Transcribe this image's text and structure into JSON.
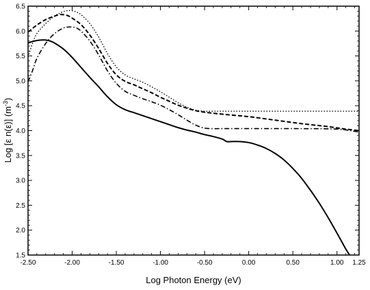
{
  "chart_data": {
    "type": "line",
    "title": "",
    "xlabel": "Log Photon Energy (eV)",
    "ylabel_main": "Log [ε n(ε)] (m",
    "ylabel_sup": "-3",
    "ylabel_close": ")",
    "xlim": [
      -2.5,
      1.25
    ],
    "ylim": [
      1.5,
      6.5
    ],
    "grid": false,
    "x_ticks": [
      -2.5,
      -2.0,
      -1.5,
      -1.0,
      -0.5,
      0.0,
      0.5,
      1.0,
      1.25
    ],
    "x_tick_labels": [
      "-2.50",
      "-2.00",
      "-1.50",
      "-1.00",
      "-0.50",
      "0.00",
      "0.50",
      "1.00",
      "1.25"
    ],
    "y_ticks": [
      1.5,
      2.0,
      2.5,
      3.0,
      3.5,
      4.0,
      4.5,
      5.0,
      5.5,
      6.0,
      6.5
    ],
    "y_tick_labels": [
      "1.5",
      "2.0",
      "2.5",
      "3.0",
      "3.5",
      "4.0",
      "4.5",
      "5.0",
      "5.5",
      "6.0",
      "6.5"
    ],
    "series": [
      {
        "style": "solid",
        "x": [
          -2.5,
          -2.45,
          -2.4,
          -2.35,
          -2.3,
          -2.25,
          -2.2,
          -2.1,
          -2.0,
          -1.9,
          -1.8,
          -1.7,
          -1.6,
          -1.5,
          -1.4,
          -1.3,
          -1.2,
          -1.1,
          -1.0,
          -0.9,
          -0.8,
          -0.7,
          -0.6,
          -0.5,
          -0.4,
          -0.3,
          -0.25,
          -0.2,
          -0.1,
          0.0,
          0.1,
          0.2,
          0.3,
          0.4,
          0.5,
          0.6,
          0.7,
          0.8,
          0.9,
          1.0,
          1.05,
          1.1,
          1.15,
          1.18
        ],
        "y": [
          5.76,
          5.79,
          5.81,
          5.82,
          5.82,
          5.8,
          5.76,
          5.64,
          5.47,
          5.27,
          5.07,
          4.88,
          4.68,
          4.52,
          4.42,
          4.36,
          4.3,
          4.24,
          4.18,
          4.12,
          4.06,
          4.01,
          3.97,
          3.92,
          3.88,
          3.83,
          3.78,
          3.78,
          3.78,
          3.76,
          3.71,
          3.64,
          3.54,
          3.41,
          3.24,
          3.04,
          2.8,
          2.54,
          2.25,
          1.94,
          1.78,
          1.62,
          1.48,
          1.4
        ]
      },
      {
        "style": "dashed",
        "x": [
          -2.5,
          -2.4,
          -2.3,
          -2.2,
          -2.15,
          -2.1,
          -2.05,
          -2.0,
          -1.9,
          -1.8,
          -1.7,
          -1.6,
          -1.5,
          -1.4,
          -1.3,
          -1.2,
          -1.1,
          -1.0,
          -0.9,
          -0.8,
          -0.7,
          -0.6,
          -0.5,
          -0.3,
          0.0,
          0.3,
          0.6,
          0.9,
          1.1,
          1.25
        ],
        "y": [
          5.98,
          6.12,
          6.23,
          6.3,
          6.33,
          6.33,
          6.31,
          6.26,
          6.13,
          5.92,
          5.65,
          5.35,
          5.12,
          4.99,
          4.92,
          4.84,
          4.76,
          4.67,
          4.59,
          4.51,
          4.45,
          4.4,
          4.37,
          4.33,
          4.28,
          4.21,
          4.14,
          4.08,
          4.03,
          4.0
        ]
      },
      {
        "style": "dotted",
        "x": [
          -2.5,
          -2.45,
          -2.4,
          -2.3,
          -2.2,
          -2.1,
          -2.05,
          -2.0,
          -1.95,
          -1.9,
          -1.8,
          -1.7,
          -1.6,
          -1.5,
          -1.4,
          -1.3,
          -1.2,
          -1.1,
          -1.0,
          -0.9,
          -0.8,
          -0.7,
          -0.6,
          -0.5,
          -0.4,
          -0.3,
          0.0,
          0.5,
          1.0,
          1.25
        ],
        "y": [
          5.48,
          5.75,
          5.95,
          6.15,
          6.3,
          6.39,
          6.41,
          6.41,
          6.38,
          6.33,
          6.15,
          5.88,
          5.55,
          5.28,
          5.12,
          5.04,
          4.97,
          4.88,
          4.78,
          4.67,
          4.56,
          4.47,
          4.41,
          4.39,
          4.39,
          4.39,
          4.39,
          4.39,
          4.39,
          4.39
        ]
      },
      {
        "style": "dash-dot",
        "x": [
          -2.5,
          -2.45,
          -2.4,
          -2.3,
          -2.2,
          -2.1,
          -2.05,
          -2.0,
          -1.95,
          -1.9,
          -1.8,
          -1.7,
          -1.6,
          -1.5,
          -1.4,
          -1.3,
          -1.2,
          -1.1,
          -1.0,
          -0.9,
          -0.8,
          -0.7,
          -0.6,
          -0.5,
          -0.4,
          -0.3,
          0.0,
          0.5,
          1.0,
          1.25
        ],
        "y": [
          4.98,
          5.2,
          5.45,
          5.75,
          5.95,
          6.06,
          6.08,
          6.08,
          6.06,
          6.0,
          5.8,
          5.52,
          5.2,
          4.95,
          4.79,
          4.71,
          4.64,
          4.58,
          4.51,
          4.42,
          4.32,
          4.21,
          4.11,
          4.05,
          4.04,
          4.04,
          4.04,
          4.04,
          4.03,
          3.97
        ]
      }
    ]
  }
}
